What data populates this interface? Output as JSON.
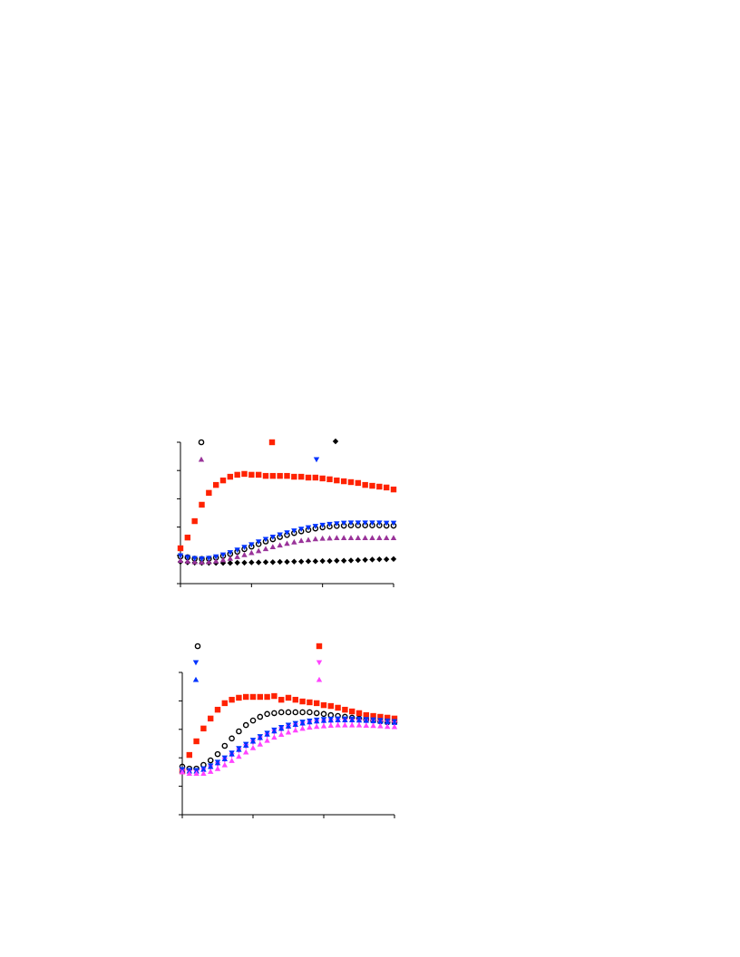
{
  "chart_data": [
    {
      "type": "scatter",
      "x": [
        0,
        0.1,
        0.2,
        0.3,
        0.4,
        0.5,
        0.6,
        0.7,
        0.8,
        0.9,
        1,
        1.1,
        1.2,
        1.3,
        1.4,
        1.5,
        1.6,
        1.7,
        1.8,
        1.9,
        2,
        2.1,
        2.2,
        2.3,
        2.4,
        2.5,
        2.6,
        2.7,
        2.8,
        2.9,
        3
      ],
      "xlim": [
        0,
        3
      ],
      "xticks": [
        0,
        1,
        2,
        3
      ],
      "ylim": [
        0,
        5
      ],
      "yticks": [
        0,
        1,
        2,
        3,
        4,
        5
      ],
      "series": [
        {
          "color": "#000000",
          "marker": "circle-open",
          "values": [
            0.96,
            0.93,
            0.88,
            0.87,
            0.88,
            0.92,
            0.98,
            1.05,
            1.13,
            1.22,
            1.31,
            1.4,
            1.49,
            1.57,
            1.65,
            1.72,
            1.79,
            1.85,
            1.9,
            1.95,
            1.99,
            2.02,
            2.04,
            2.05,
            2.06,
            2.06,
            2.06,
            2.06,
            2.06,
            2.05,
            2.05
          ]
        },
        {
          "color": "#ff2200",
          "marker": "square",
          "values": [
            1.25,
            1.63,
            2.21,
            2.79,
            3.21,
            3.49,
            3.65,
            3.78,
            3.85,
            3.88,
            3.85,
            3.85,
            3.81,
            3.81,
            3.81,
            3.81,
            3.78,
            3.78,
            3.75,
            3.75,
            3.72,
            3.69,
            3.65,
            3.62,
            3.59,
            3.56,
            3.49,
            3.46,
            3.43,
            3.4,
            3.33
          ]
        },
        {
          "color": "#000000",
          "marker": "diamond",
          "values": [
            0.77,
            0.75,
            0.74,
            0.73,
            0.73,
            0.73,
            0.73,
            0.73,
            0.74,
            0.74,
            0.75,
            0.75,
            0.76,
            0.76,
            0.77,
            0.77,
            0.78,
            0.78,
            0.79,
            0.79,
            0.8,
            0.8,
            0.81,
            0.81,
            0.82,
            0.83,
            0.84,
            0.85,
            0.86,
            0.86,
            0.87
          ]
        },
        {
          "color": "#993399",
          "marker": "triangle-up",
          "values": [
            0.82,
            0.79,
            0.77,
            0.76,
            0.77,
            0.8,
            0.84,
            0.89,
            0.95,
            1.02,
            1.09,
            1.16,
            1.23,
            1.3,
            1.36,
            1.42,
            1.47,
            1.52,
            1.55,
            1.58,
            1.6,
            1.61,
            1.62,
            1.62,
            1.62,
            1.62,
            1.62,
            1.62,
            1.62,
            1.62,
            1.62
          ]
        },
        {
          "color": "#0033ff",
          "marker": "triangle-down",
          "values": [
            0.99,
            0.93,
            0.89,
            0.88,
            0.9,
            0.95,
            1.02,
            1.1,
            1.19,
            1.29,
            1.38,
            1.48,
            1.57,
            1.65,
            1.73,
            1.8,
            1.87,
            1.93,
            1.98,
            2.03,
            2.07,
            2.1,
            2.12,
            2.14,
            2.15,
            2.15,
            2.15,
            2.15,
            2.15,
            2.14,
            2.14
          ]
        }
      ]
    },
    {
      "type": "scatter",
      "x": [
        0,
        0.1,
        0.2,
        0.3,
        0.4,
        0.5,
        0.6,
        0.7,
        0.8,
        0.9,
        1,
        1.1,
        1.2,
        1.3,
        1.4,
        1.5,
        1.6,
        1.7,
        1.8,
        1.9,
        2,
        2.1,
        2.2,
        2.3,
        2.4,
        2.5,
        2.6,
        2.7,
        2.8,
        2.9,
        3
      ],
      "xlim": [
        0,
        3
      ],
      "xticks": [
        0,
        1,
        2,
        3
      ],
      "ylim": [
        0,
        5
      ],
      "yticks": [
        0,
        1,
        2,
        3,
        4,
        5
      ],
      "series": [
        {
          "color": "#000000",
          "marker": "circle-open",
          "values": [
            1.69,
            1.62,
            1.62,
            1.75,
            1.91,
            2.13,
            2.42,
            2.68,
            2.93,
            3.15,
            3.31,
            3.44,
            3.54,
            3.57,
            3.6,
            3.6,
            3.6,
            3.6,
            3.6,
            3.57,
            3.54,
            3.5,
            3.47,
            3.44,
            3.41,
            3.38,
            3.34,
            3.31,
            3.28,
            3.25,
            3.25
          ]
        },
        {
          "color": "#ff2200",
          "marker": "square",
          "values": [
            1.53,
            2.1,
            2.58,
            3.03,
            3.38,
            3.69,
            3.92,
            4.04,
            4.11,
            4.14,
            4.14,
            4.14,
            4.14,
            4.17,
            4.04,
            4.11,
            4.04,
            3.98,
            3.95,
            3.92,
            3.85,
            3.82,
            3.76,
            3.69,
            3.63,
            3.57,
            3.5,
            3.47,
            3.44,
            3.41,
            3.38
          ]
        },
        {
          "color": "#0033ff",
          "marker": "triangle-down",
          "values": [
            1.59,
            1.56,
            1.56,
            1.62,
            1.72,
            1.85,
            2,
            2.17,
            2.33,
            2.48,
            2.62,
            2.75,
            2.87,
            2.98,
            3.07,
            3.15,
            3.21,
            3.26,
            3.3,
            3.33,
            3.35,
            3.36,
            3.37,
            3.37,
            3.37,
            3.36,
            3.35,
            3.34,
            3.32,
            3.3,
            3.28
          ]
        },
        {
          "color": "#ff44ff",
          "marker": "triangle-down",
          "values": [
            1.52,
            1.49,
            1.49,
            1.55,
            1.65,
            1.77,
            1.92,
            2.09,
            2.25,
            2.4,
            2.54,
            2.67,
            2.79,
            2.9,
            2.99,
            3.07,
            3.13,
            3.18,
            3.22,
            3.25,
            3.27,
            3.28,
            3.29,
            3.29,
            3.29,
            3.28,
            3.27,
            3.26,
            3.24,
            3.22,
            3.2
          ]
        },
        {
          "color": "#0033ff",
          "marker": "triangle-up",
          "values": [
            1.56,
            1.53,
            1.53,
            1.59,
            1.69,
            1.82,
            1.96,
            2.13,
            2.29,
            2.44,
            2.58,
            2.71,
            2.83,
            2.94,
            3.03,
            3.11,
            3.17,
            3.22,
            3.26,
            3.29,
            3.31,
            3.32,
            3.33,
            3.33,
            3.33,
            3.32,
            3.31,
            3.3,
            3.28,
            3.26,
            3.24
          ]
        },
        {
          "color": "#ff44ff",
          "marker": "triangle-up",
          "values": [
            1.5,
            1.45,
            1.45,
            1.45,
            1.52,
            1.62,
            1.75,
            1.9,
            2.05,
            2.2,
            2.35,
            2.48,
            2.61,
            2.72,
            2.82,
            2.9,
            2.97,
            3.03,
            3.07,
            3.1,
            3.12,
            3.14,
            3.15,
            3.15,
            3.15,
            3.15,
            3.14,
            3.13,
            3.12,
            3.1,
            3.09
          ]
        }
      ]
    }
  ]
}
